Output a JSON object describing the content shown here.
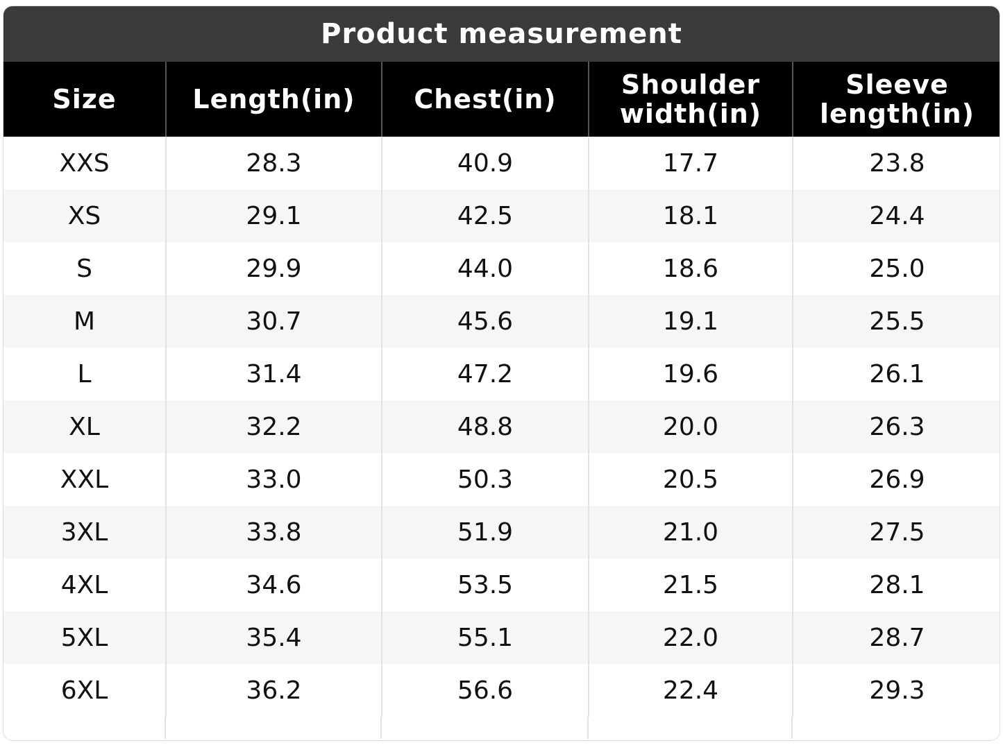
{
  "header": {
    "title": "Product measurement"
  },
  "table": {
    "columns": [
      "Size",
      "Length(in)",
      "Chest(in)",
      "Shoulder width(in)",
      "Sleeve length(in)"
    ],
    "rows": [
      [
        "XXS",
        "28.3",
        "40.9",
        "17.7",
        "23.8"
      ],
      [
        "XS",
        "29.1",
        "42.5",
        "18.1",
        "24.4"
      ],
      [
        "S",
        "29.9",
        "44.0",
        "18.6",
        "25.0"
      ],
      [
        "M",
        "30.7",
        "45.6",
        "19.1",
        "25.5"
      ],
      [
        "L",
        "31.4",
        "47.2",
        "19.6",
        "26.1"
      ],
      [
        "XL",
        "32.2",
        "48.8",
        "20.0",
        "26.3"
      ],
      [
        "XXL",
        "33.0",
        "50.3",
        "20.5",
        "26.9"
      ],
      [
        "3XL",
        "33.8",
        "51.9",
        "21.0",
        "27.5"
      ],
      [
        "4XL",
        "34.6",
        "53.5",
        "21.5",
        "28.1"
      ],
      [
        "5XL",
        "35.4",
        "55.1",
        "22.0",
        "28.7"
      ],
      [
        "6XL",
        "36.2",
        "56.6",
        "22.4",
        "29.3"
      ]
    ]
  }
}
